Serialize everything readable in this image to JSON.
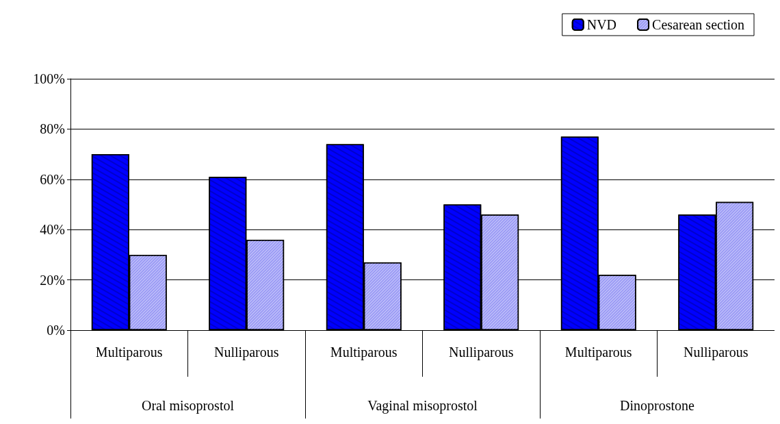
{
  "chart_data": {
    "type": "bar",
    "categories": [
      "Multiparous",
      "Nulliparous",
      "Multiparous",
      "Nulliparous",
      "Multiparous",
      "Nulliparous"
    ],
    "annotations": [
      "Oral misoprostol",
      "Vaginal misoprostol",
      "Dinoprostone"
    ],
    "series": [
      {
        "name": "NVD",
        "color": "#0000ff",
        "values": [
          70,
          61,
          74,
          50,
          77,
          46
        ]
      },
      {
        "name": "Cesarean section",
        "color": "#9a9af5",
        "values": [
          30,
          36,
          27,
          46,
          22,
          51
        ]
      }
    ],
    "ylim": [
      0,
      100
    ],
    "yticks": [
      {
        "value": 0,
        "label": "0%"
      },
      {
        "value": 20,
        "label": "20%"
      },
      {
        "value": 40,
        "label": "40%"
      },
      {
        "value": 60,
        "label": "60%"
      },
      {
        "value": 80,
        "label": "80%"
      },
      {
        "value": 100,
        "label": "100%"
      }
    ],
    "grid": "y",
    "legend": "top right"
  }
}
